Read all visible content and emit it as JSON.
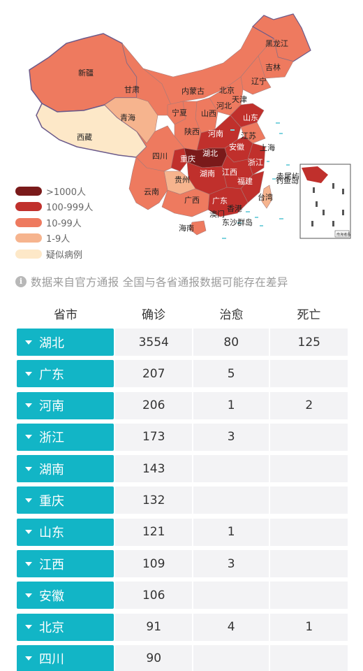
{
  "map": {
    "provinces": {
      "xinjiang": "新疆",
      "xizang": "西藏",
      "qinghai": "青海",
      "gansu": "甘肃",
      "neimenggu": "内蒙古",
      "heilongjiang": "黑龙江",
      "jilin": "吉林",
      "liaoning": "辽宁",
      "beijing": "北京",
      "tianjin": "天津",
      "hebei": "河北",
      "shanxi": "山西",
      "ningxia": "宁夏",
      "shaanxi": "陕西",
      "shandong": "山东",
      "henan": "河南",
      "jiangsu": "江苏",
      "anhui": "安徽",
      "shanghai": "上海",
      "hubei": "湖北",
      "sichuan": "四川",
      "chongqing": "重庆",
      "zhejiang": "浙江",
      "hunan": "湖南",
      "jiangxi": "江西",
      "guizhou": "贵州",
      "fujian": "福建",
      "yunnan": "云南",
      "guangxi": "广西",
      "guangdong": "广东",
      "taiwan": "台湾",
      "hainan": "海南",
      "aomen": "澳门",
      "xianggang": "香港",
      "diaoyudao": "钓鱼岛",
      "chiweiyu": "赤尾屿",
      "dongsha": "东沙群岛",
      "nanhai": "南海诸岛"
    },
    "colors": {
      "over1000": "#7a1a1a",
      "h100to999": "#c0302c",
      "h10to99": "#ee7a5f",
      "h1to9": "#f6b48e",
      "suspected": "#fde8c8",
      "border": "#6b5a8a"
    }
  },
  "legend": [
    {
      "label": ">1000人",
      "color": "#7a1a1a"
    },
    {
      "label": "100-999人",
      "color": "#c0302c"
    },
    {
      "label": "10-99人",
      "color": "#ee7a5f"
    },
    {
      "label": "1-9人",
      "color": "#f6b48e"
    },
    {
      "label": "疑似病例",
      "color": "#fde8c8"
    }
  ],
  "note": {
    "icon": "info-icon",
    "text": "数据来自官方通报 全国与各省通报数据可能存在差异"
  },
  "table": {
    "headers": [
      "省市",
      "确诊",
      "治愈",
      "死亡"
    ],
    "rows": [
      {
        "province": "湖北",
        "confirmed": "3554",
        "cured": "80",
        "dead": "125"
      },
      {
        "province": "广东",
        "confirmed": "207",
        "cured": "5",
        "dead": ""
      },
      {
        "province": "河南",
        "confirmed": "206",
        "cured": "1",
        "dead": "2"
      },
      {
        "province": "浙江",
        "confirmed": "173",
        "cured": "3",
        "dead": ""
      },
      {
        "province": "湖南",
        "confirmed": "143",
        "cured": "",
        "dead": ""
      },
      {
        "province": "重庆",
        "confirmed": "132",
        "cured": "",
        "dead": ""
      },
      {
        "province": "山东",
        "confirmed": "121",
        "cured": "1",
        "dead": ""
      },
      {
        "province": "江西",
        "confirmed": "109",
        "cured": "3",
        "dead": ""
      },
      {
        "province": "安徽",
        "confirmed": "106",
        "cured": "",
        "dead": ""
      },
      {
        "province": "北京",
        "confirmed": "91",
        "cured": "4",
        "dead": "1"
      },
      {
        "province": "四川",
        "confirmed": "90",
        "cured": "",
        "dead": ""
      }
    ]
  }
}
